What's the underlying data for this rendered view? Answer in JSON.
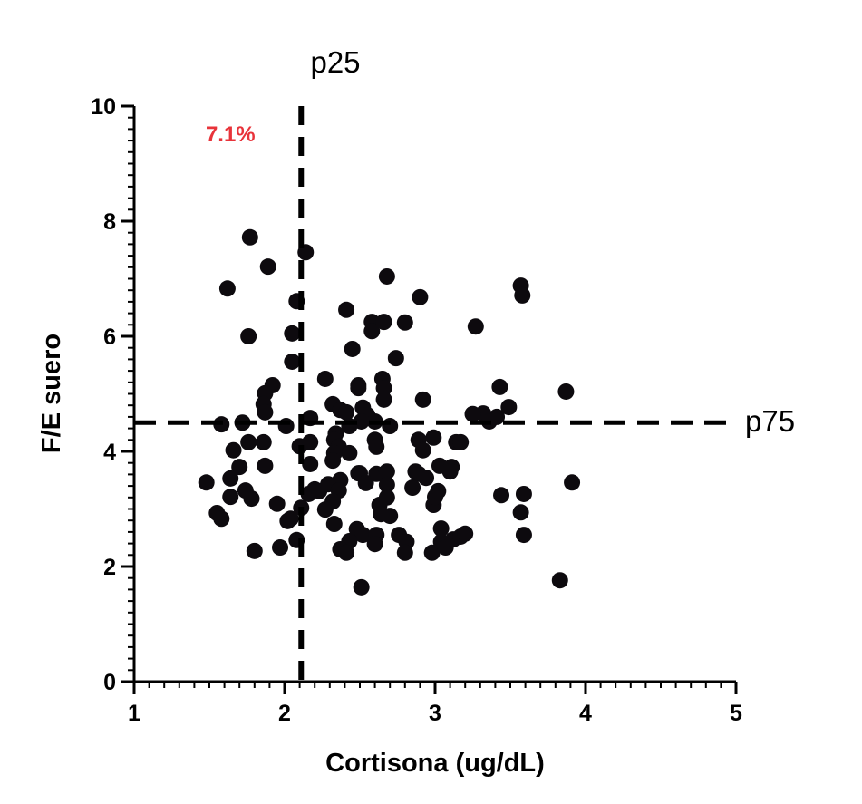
{
  "chart_data": {
    "type": "scatter",
    "title": "",
    "xlabel": "Cortisona (ug/dL)",
    "ylabel": "F/E suero",
    "xlim": [
      1,
      5
    ],
    "ylim": [
      0,
      10
    ],
    "xticks": [
      "1",
      "2",
      "3",
      "4",
      "5"
    ],
    "yticks": [
      "0",
      "2",
      "4",
      "6",
      "8",
      "10"
    ],
    "xtick_values": [
      1,
      2,
      3,
      4,
      5
    ],
    "ytick_values": [
      0,
      2,
      4,
      6,
      8,
      10
    ],
    "grid": false,
    "reference_lines": [
      {
        "orientation": "vertical",
        "value": 2.11,
        "label": "p25",
        "style": "dashed"
      },
      {
        "orientation": "horizontal",
        "value": 4.5,
        "label": "p75",
        "style": "dashed"
      }
    ],
    "annotation": {
      "text": "7.1%",
      "color": "#e8333a",
      "x": 1.55,
      "y": 9.5
    },
    "marker_color": "#0d0a0e",
    "points": [
      [
        1.77,
        7.72
      ],
      [
        2.14,
        7.46
      ],
      [
        1.62,
        6.83
      ],
      [
        1.89,
        7.21
      ],
      [
        2.68,
        7.04
      ],
      [
        2.08,
        6.61
      ],
      [
        2.9,
        6.68
      ],
      [
        3.57,
        6.88
      ],
      [
        3.58,
        6.71
      ],
      [
        2.41,
        6.46
      ],
      [
        2.58,
        6.25
      ],
      [
        2.58,
        6.09
      ],
      [
        2.66,
        6.25
      ],
      [
        2.8,
        6.24
      ],
      [
        1.76,
        6.0
      ],
      [
        2.05,
        6.05
      ],
      [
        2.45,
        5.78
      ],
      [
        3.27,
        6.17
      ],
      [
        2.74,
        5.62
      ],
      [
        2.05,
        5.56
      ],
      [
        2.27,
        5.26
      ],
      [
        2.49,
        5.15
      ],
      [
        2.49,
        5.1
      ],
      [
        2.65,
        5.26
      ],
      [
        2.66,
        5.1
      ],
      [
        2.66,
        4.9
      ],
      [
        1.92,
        5.15
      ],
      [
        1.87,
        5.01
      ],
      [
        1.86,
        4.82
      ],
      [
        1.87,
        4.68
      ],
      [
        3.43,
        5.12
      ],
      [
        3.87,
        5.04
      ],
      [
        2.92,
        4.9
      ],
      [
        3.32,
        4.66
      ],
      [
        2.32,
        4.82
      ],
      [
        2.37,
        4.72
      ],
      [
        2.41,
        4.68
      ],
      [
        2.43,
        4.44
      ],
      [
        2.52,
        4.76
      ],
      [
        2.55,
        4.63
      ],
      [
        2.6,
        4.52
      ],
      [
        1.72,
        4.5
      ],
      [
        1.58,
        4.47
      ],
      [
        2.01,
        4.44
      ],
      [
        2.17,
        4.58
      ],
      [
        2.51,
        4.52
      ],
      [
        2.7,
        4.44
      ],
      [
        3.25,
        4.65
      ],
      [
        3.41,
        4.6
      ],
      [
        3.49,
        4.77
      ],
      [
        3.36,
        4.52
      ],
      [
        1.76,
        4.16
      ],
      [
        1.86,
        4.16
      ],
      [
        1.66,
        4.02
      ],
      [
        2.1,
        4.09
      ],
      [
        2.17,
        4.16
      ],
      [
        2.34,
        4.31
      ],
      [
        2.33,
        4.2
      ],
      [
        2.36,
        4.08
      ],
      [
        2.43,
        3.97
      ],
      [
        2.6,
        4.2
      ],
      [
        2.61,
        4.08
      ],
      [
        2.89,
        4.2
      ],
      [
        2.92,
        4.02
      ],
      [
        2.99,
        4.24
      ],
      [
        3.14,
        4.16
      ],
      [
        3.17,
        4.16
      ],
      [
        1.87,
        3.75
      ],
      [
        1.7,
        3.73
      ],
      [
        2.17,
        3.78
      ],
      [
        2.33,
        3.97
      ],
      [
        2.32,
        3.84
      ],
      [
        2.5,
        3.62
      ],
      [
        2.87,
        3.65
      ],
      [
        2.89,
        3.61
      ],
      [
        2.49,
        3.62
      ],
      [
        2.61,
        3.61
      ],
      [
        2.68,
        3.65
      ],
      [
        3.03,
        3.75
      ],
      [
        3.11,
        3.73
      ],
      [
        3.1,
        3.65
      ],
      [
        2.37,
        3.5
      ],
      [
        2.94,
        3.54
      ],
      [
        2.16,
        3.26
      ],
      [
        2.2,
        3.34
      ],
      [
        2.23,
        3.31
      ],
      [
        2.29,
        3.43
      ],
      [
        2.36,
        3.32
      ],
      [
        2.54,
        3.45
      ],
      [
        2.85,
        3.37
      ],
      [
        2.68,
        3.42
      ],
      [
        1.48,
        3.46
      ],
      [
        1.64,
        3.53
      ],
      [
        1.74,
        3.32
      ],
      [
        1.64,
        3.21
      ],
      [
        1.78,
        3.18
      ],
      [
        1.95,
        3.09
      ],
      [
        2.04,
        2.83
      ],
      [
        2.11,
        3.02
      ],
      [
        2.32,
        3.13
      ],
      [
        2.27,
        2.99
      ],
      [
        2.63,
        3.07
      ],
      [
        2.68,
        3.2
      ],
      [
        2.7,
        2.88
      ],
      [
        2.64,
        2.91
      ],
      [
        2.33,
        2.74
      ],
      [
        2.48,
        2.65
      ],
      [
        2.52,
        2.55
      ],
      [
        2.61,
        2.55
      ],
      [
        2.76,
        2.55
      ],
      [
        2.99,
        3.07
      ],
      [
        3.0,
        3.21
      ],
      [
        3.02,
        3.31
      ],
      [
        3.59,
        3.26
      ],
      [
        3.91,
        3.46
      ],
      [
        3.44,
        3.24
      ],
      [
        3.57,
        2.94
      ],
      [
        1.55,
        2.93
      ],
      [
        1.58,
        2.83
      ],
      [
        2.02,
        2.79
      ],
      [
        2.43,
        2.44
      ],
      [
        2.37,
        2.3
      ],
      [
        2.41,
        2.24
      ],
      [
        2.6,
        2.39
      ],
      [
        2.81,
        2.43
      ],
      [
        2.98,
        2.24
      ],
      [
        3.04,
        2.43
      ],
      [
        3.07,
        2.33
      ],
      [
        1.8,
        2.27
      ],
      [
        1.97,
        2.33
      ],
      [
        2.08,
        2.46
      ],
      [
        3.59,
        2.55
      ],
      [
        3.12,
        2.47
      ],
      [
        3.04,
        2.66
      ],
      [
        3.17,
        2.52
      ],
      [
        2.8,
        2.24
      ],
      [
        3.2,
        2.57
      ],
      [
        3.83,
        1.76
      ],
      [
        2.51,
        1.64
      ]
    ]
  }
}
